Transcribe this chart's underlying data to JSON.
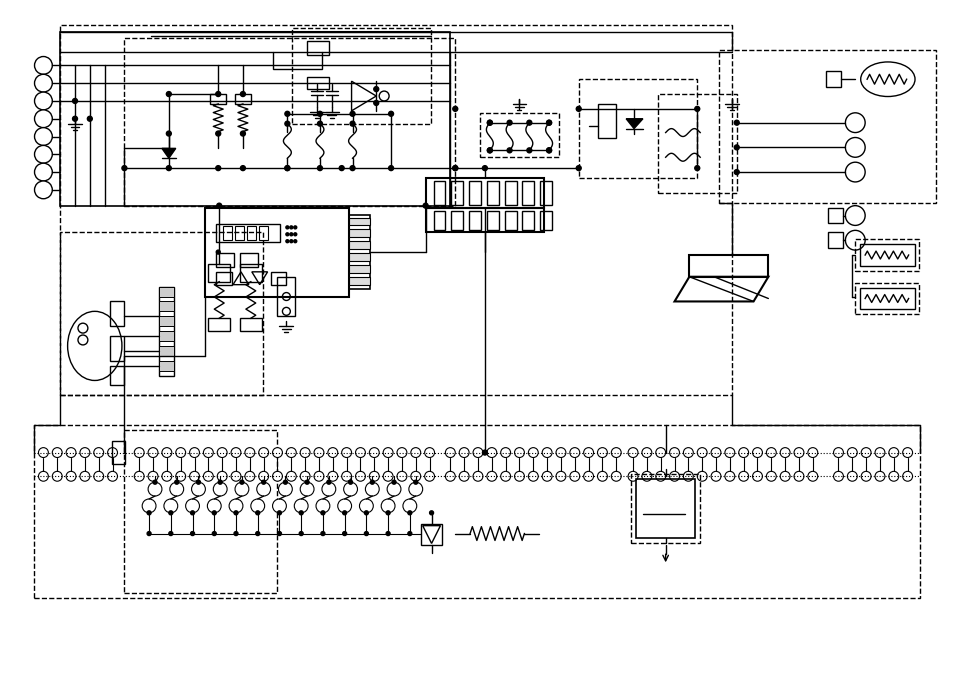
{
  "bg_color": "#ffffff",
  "line_color": "#000000",
  "figsize": [
    9.54,
    6.76
  ],
  "dpi": 100
}
